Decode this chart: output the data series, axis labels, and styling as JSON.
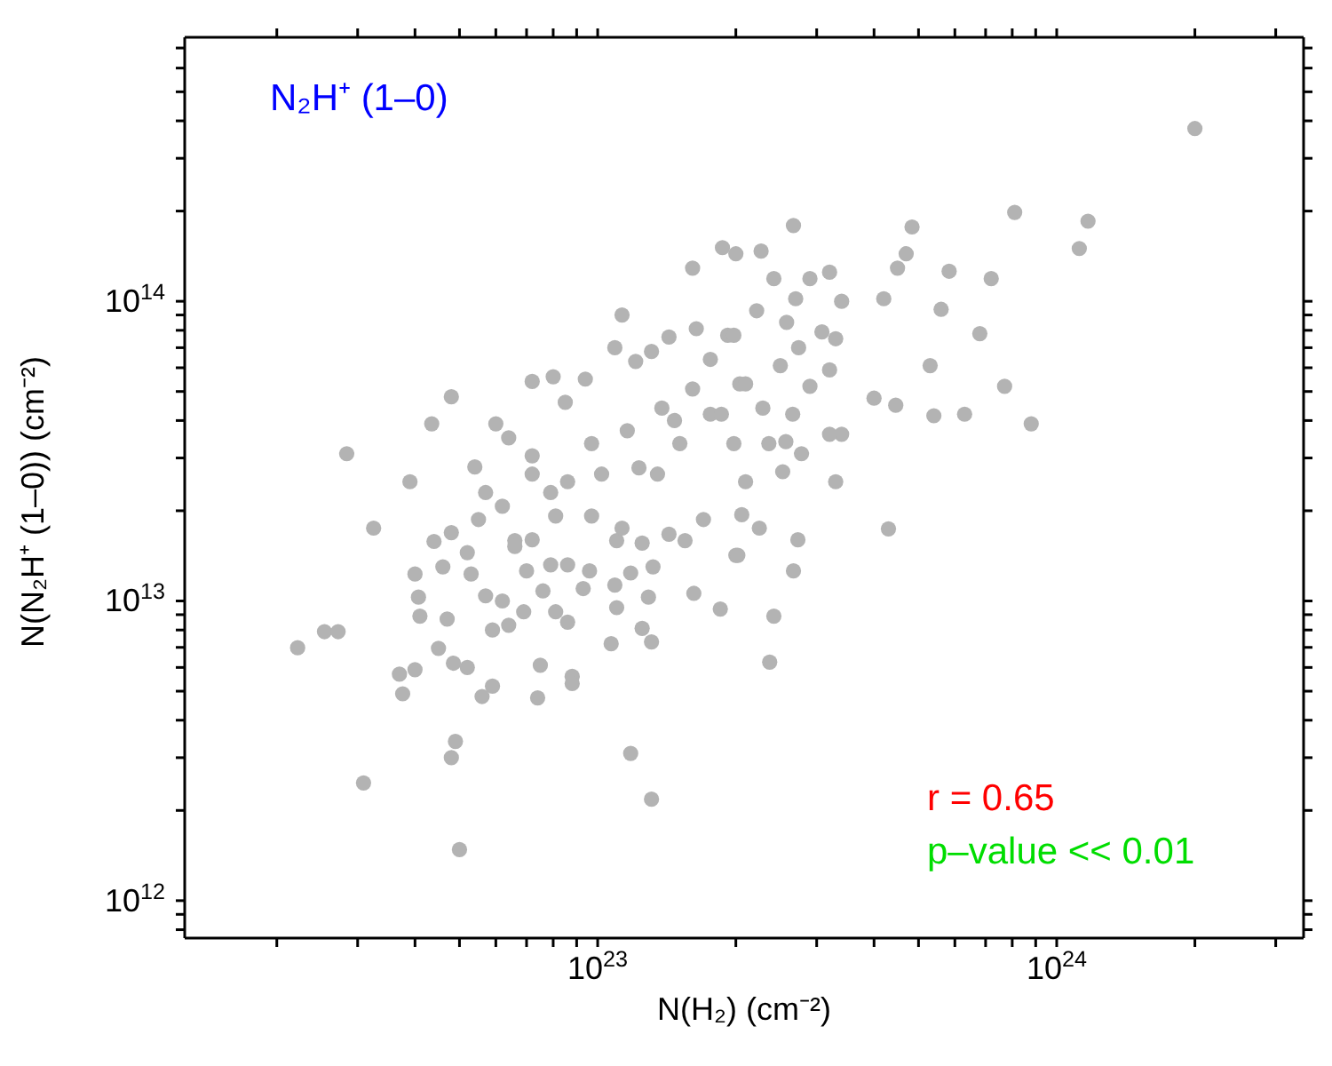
{
  "chart_data": {
    "type": "scatter",
    "xlabel": "N(H₂) (cm⁻²)",
    "ylabel": "N(N₂H⁺ (1–0)) (cm⁻²)",
    "annotations": [
      "N₂H⁺ (1–0)",
      "r = 0.65",
      "p–value << 0.01"
    ],
    "log": "xy",
    "marker": "circle",
    "color": "#b3b3b3",
    "xlim": [
      1.26e+22,
      3.45e+24
    ],
    "xticks": [
      {
        "value": 2e+22,
        "label": null
      },
      {
        "value": 3e+22,
        "label": null
      },
      {
        "value": 4e+22,
        "label": null
      },
      {
        "value": 5e+22,
        "label": null
      },
      {
        "value": 6e+22,
        "label": null
      },
      {
        "value": 7e+22,
        "label": null
      },
      {
        "value": 8e+22,
        "label": null
      },
      {
        "value": 9e+22,
        "label": null
      },
      {
        "value": 1e+23,
        "label": "10$^{23}$"
      },
      {
        "value": 2e+23,
        "label": null
      },
      {
        "value": 3e+23,
        "label": null
      },
      {
        "value": 4e+23,
        "label": null
      },
      {
        "value": 5e+23,
        "label": null
      },
      {
        "value": 6e+23,
        "label": null
      },
      {
        "value": 7e+23,
        "label": null
      },
      {
        "value": 8e+23,
        "label": null
      },
      {
        "value": 9e+23,
        "label": null
      },
      {
        "value": 1e+24,
        "label": "10$^{24}$"
      },
      {
        "value": 2e+24,
        "label": null
      },
      {
        "value": 3e+24,
        "label": null
      }
    ],
    "ylim": [
      750000000000.0,
      760000000000000.0
    ],
    "yticks": [
      {
        "value": 800000000000.0,
        "label": null
      },
      {
        "value": 900000000000.0,
        "label": null
      },
      {
        "value": 1000000000000.0,
        "label": "10$^{12}$"
      },
      {
        "value": 2000000000000.0,
        "label": null
      },
      {
        "value": 3000000000000.0,
        "label": null
      },
      {
        "value": 4000000000000.0,
        "label": null
      },
      {
        "value": 5000000000000.0,
        "label": null
      },
      {
        "value": 6000000000000.0,
        "label": null
      },
      {
        "value": 7000000000000.0,
        "label": null
      },
      {
        "value": 8000000000000.0,
        "label": null
      },
      {
        "value": 9000000000000.0,
        "label": null
      },
      {
        "value": 10000000000000.0,
        "label": "10$^{13}$"
      },
      {
        "value": 20000000000000.0,
        "label": null
      },
      {
        "value": 30000000000000.0,
        "label": null
      },
      {
        "value": 40000000000000.0,
        "label": null
      },
      {
        "value": 50000000000000.0,
        "label": null
      },
      {
        "value": 60000000000000.0,
        "label": null
      },
      {
        "value": 70000000000000.0,
        "label": null
      },
      {
        "value": 80000000000000.0,
        "label": null
      },
      {
        "value": 90000000000000.0,
        "label": null
      },
      {
        "value": 100000000000000.0,
        "label": "10$^{14}$"
      },
      {
        "value": 200000000000000.0,
        "label": null
      },
      {
        "value": 300000000000000.0,
        "label": null
      },
      {
        "value": 400000000000000.0,
        "label": null
      },
      {
        "value": 500000000000000.0,
        "label": null
      },
      {
        "value": 600000000000000.0,
        "label": null
      },
      {
        "value": 700000000000000.0,
        "label": null
      }
    ],
    "x": [
      2e+24,
      8.1e+23,
      1.17e+24,
      1.12e+24,
      4.84e+23,
      2.67e+23,
      5.83e+23,
      7.2e+23,
      6.8e+23,
      7.7e+23,
      8.8e+23,
      6.3e+23,
      5.4e+23,
      5.3e+23,
      4.46e+23,
      4e+23,
      4.2e+23,
      5.6e+23,
      4.5e+23,
      4.7e+23,
      1.87e+23,
      2e+23,
      2.27e+23,
      2.42e+23,
      2.9e+23,
      3.2e+23,
      2.7e+23,
      3.4e+23,
      3.3e+23,
      3.2e+23,
      2.9e+23,
      3.4e+23,
      3.2e+23,
      2.57e+23,
      2.53e+23,
      3.3e+23,
      2.78e+23,
      4.3e+23,
      2.73e+23,
      2.67e+23,
      2.42e+23,
      2.37e+23,
      1.85e+23,
      2e+23,
      2.25e+23,
      2.06e+23,
      2.22e+22,
      2.54e+22,
      2.72e+22,
      3.09e+22,
      5e+22,
      4.8e+22,
      4.9e+22,
      1.18e+23,
      1.31e+23,
      3.7e+22,
      3.76e+22,
      4e+22,
      4.5e+22,
      4.85e+22,
      5.2e+22,
      5.6e+22,
      5.9e+22,
      7.4e+22,
      7.5e+22,
      8.8e+22,
      8.8e+22,
      1.07e+23,
      1.31e+23,
      1.25e+23,
      2.02e+23,
      1.62e+23,
      3.25e+22,
      3.9e+22,
      4e+22,
      4.07e+22,
      4.1e+22,
      4.4e+22,
      4.6e+22,
      4.8e+22,
      4.7e+22,
      5.2e+22,
      5.3e+22,
      5.7e+22,
      6.2e+22,
      5.9e+22,
      6.4e+22,
      6.9e+22,
      7.6e+22,
      8.1e+22,
      8.6e+22,
      9.3e+22,
      1.1e+23,
      1.09e+23,
      1.29e+23,
      1.18e+23,
      1.32e+23,
      9.6e+22,
      8.6e+22,
      7.9e+22,
      7e+22,
      6.6e+22,
      7.2e+22,
      5.7e+22,
      5.5e+22,
      6.2e+22,
      8.1e+22,
      9.7e+22,
      1.1e+23,
      1.25e+23,
      1.43e+23,
      1.55e+23,
      1.7e+23,
      2.84e+22,
      4.35e+22,
      4.8e+22,
      6e+22,
      7.2e+22,
      8e+22,
      9.4e+22,
      8.5e+22,
      1.13e+23,
      1.09e+23,
      1.61e+23,
      1.64e+23,
      1.43e+23,
      1.31e+23,
      1.21e+23,
      6.4e+22,
      5.4e+22,
      7.2e+22,
      9.7e+22,
      1.16e+23,
      1.38e+23,
      1.61e+23,
      1.76e+23,
      1.92e+23,
      2.04e+23,
      1.76e+23,
      1.51e+23,
      1.23e+23,
      8.6e+22,
      1.98e+23,
      2.22e+23,
      2.1e+23,
      2.29e+23,
      2.5e+23,
      2.74e+23,
      3.08e+23,
      2.58e+23,
      2.36e+23,
      1.98e+23,
      1.86e+23,
      2.66e+23,
      2.1e+23,
      1.02e+23,
      1.13e+23,
      7.9e+22,
      6.6e+22,
      7.2e+22,
      1.35e+23,
      1.47e+23
    ],
    "values": [
      377000000000000.0,
      198000000000000.0,
      185000000000000.0,
      150000000000000.0,
      177000000000000.0,
      179000000000000.0,
      126000000000000.0,
      119000000000000.0,
      78000000000000.0,
      52000000000000.0,
      39000000000000.0,
      42000000000000.0,
      41500000000000.0,
      61000000000000.0,
      45000000000000.0,
      47500000000000.0,
      102000000000000.0,
      94000000000000.0,
      129000000000000.0,
      144000000000000.0,
      151000000000000.0,
      144000000000000.0,
      147000000000000.0,
      119000000000000.0,
      119000000000000.0,
      125000000000000.0,
      102000000000000.0,
      100000000000000.0,
      75000000000000.0,
      59000000000000.0,
      52000000000000.0,
      36000000000000.0,
      36000000000000.0,
      34000000000000.0,
      27000000000000.0,
      25000000000000.0,
      31000000000000.0,
      17400000000000.0,
      16000000000000.0,
      12600000000000.0,
      8900000000000.0,
      6250000000000.0,
      9400000000000.0,
      14200000000000.0,
      17500000000000.0,
      19400000000000.0,
      6980000000000.0,
      7900000000000.0,
      7900000000000.0,
      2470000000000.0,
      1480000000000.0,
      3000000000000.0,
      3400000000000.0,
      3100000000000.0,
      2180000000000.0,
      5700000000000.0,
      4900000000000.0,
      5900000000000.0,
      6950000000000.0,
      6200000000000.0,
      6000000000000.0,
      4800000000000.0,
      5200000000000.0,
      4750000000000.0,
      6100000000000.0,
      5600000000000.0,
      5300000000000.0,
      7200000000000.0,
      7300000000000.0,
      8100000000000.0,
      14200000000000.0,
      10600000000000.0,
      17500000000000.0,
      25000000000000.0,
      12300000000000.0,
      10300000000000.0,
      8900000000000.0,
      15800000000000.0,
      13000000000000.0,
      16900000000000.0,
      8700000000000.0,
      14500000000000.0,
      12300000000000.0,
      10400000000000.0,
      10000000000000.0,
      8000000000000.0,
      8300000000000.0,
      9200000000000.0,
      10800000000000.0,
      9200000000000.0,
      8500000000000.0,
      11000000000000.0,
      9500000000000.0,
      11300000000000.0,
      10300000000000.0,
      12400000000000.0,
      13000000000000.0,
      12600000000000.0,
      13200000000000.0,
      13200000000000.0,
      12600000000000.0,
      15900000000000.0,
      16000000000000.0,
      23000000000000.0,
      18700000000000.0,
      20700000000000.0,
      19200000000000.0,
      19200000000000.0,
      15900000000000.0,
      15600000000000.0,
      16700000000000.0,
      15900000000000.0,
      18700000000000.0,
      31000000000000.0,
      39000000000000.0,
      48000000000000.0,
      39000000000000.0,
      54000000000000.0,
      56000000000000.0,
      55000000000000.0,
      46000000000000.0,
      90000000000000.0,
      70000000000000.0,
      129000000000000.0,
      81000000000000.0,
      76000000000000.0,
      68000000000000.0,
      63000000000000.0,
      35000000000000.0,
      28000000000000.0,
      30500000000000.0,
      33500000000000.0,
      37000000000000.0,
      44000000000000.0,
      51000000000000.0,
      64000000000000.0,
      77000000000000.0,
      53000000000000.0,
      42000000000000.0,
      33500000000000.0,
      27800000000000.0,
      25000000000000.0,
      77000000000000.0,
      93000000000000.0,
      53000000000000.0,
      44000000000000.0,
      61000000000000.0,
      70000000000000.0,
      79000000000000.0,
      85000000000000.0,
      33500000000000.0,
      33500000000000.0,
      42000000000000.0,
      42000000000000.0,
      25000000000000.0,
      26500000000000.0,
      17500000000000.0,
      23000000000000.0,
      15200000000000.0,
      26500000000000.0,
      26500000000000.0,
      40000000000000.0
    ]
  }
}
